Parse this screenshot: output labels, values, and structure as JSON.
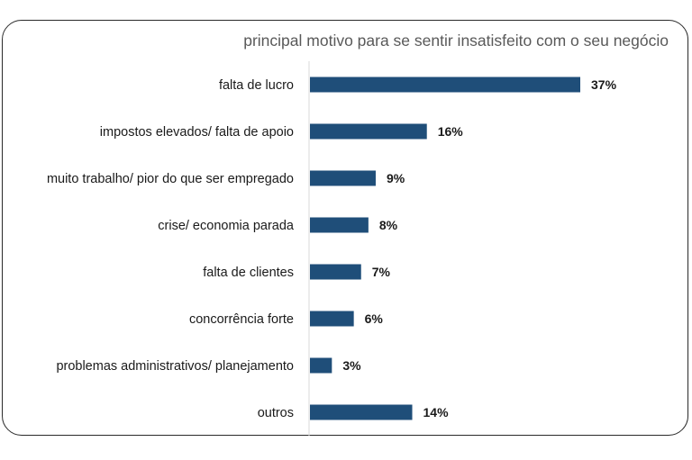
{
  "chart_data": {
    "type": "bar",
    "orientation": "horizontal",
    "title": "principal motivo para se sentir insatisfeito com o seu negócio",
    "categories": [
      "falta de lucro",
      "impostos elevados/ falta de apoio",
      "muito trabalho/ pior do que ser empregado",
      "crise/ economia parada",
      "falta de clientes",
      "concorrência forte",
      "problemas administrativos/ planejamento",
      "outros"
    ],
    "values": [
      37,
      16,
      9,
      8,
      7,
      6,
      3,
      14
    ],
    "value_labels": [
      "37%",
      "16%",
      "9%",
      "8%",
      "7%",
      "6%",
      "3%",
      "14%"
    ],
    "unit": "%",
    "xlim": [
      0,
      37
    ],
    "xlabel": "",
    "ylabel": "",
    "grid": false,
    "bar_color": "#1f4e79"
  }
}
